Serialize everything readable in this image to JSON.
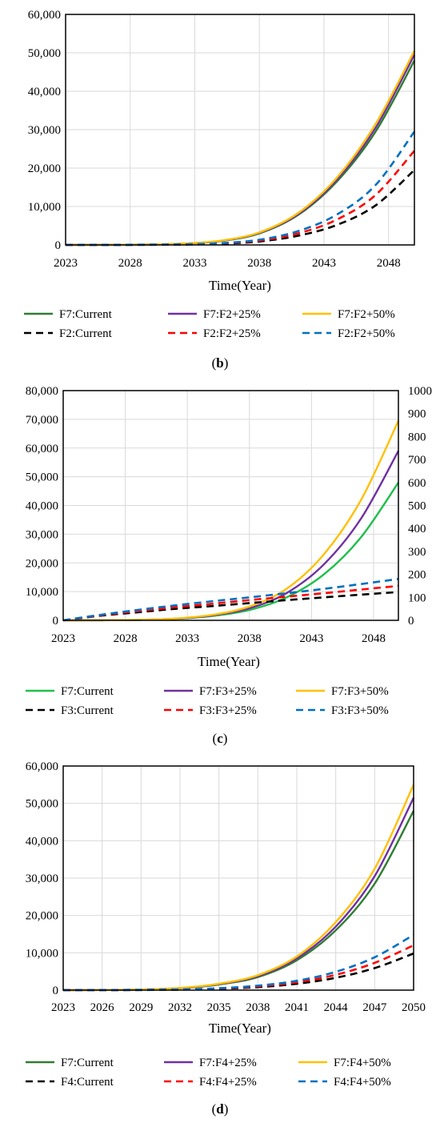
{
  "colors": {
    "green": "#2e7d32",
    "bright_green": "#1fbf4a",
    "purple": "#7030a0",
    "gold": "#ffc000",
    "black": "#000000",
    "red": "#ff0000",
    "blue": "#0070c0",
    "grid": "#d9d9d9"
  },
  "chart_data": [
    {
      "type": "line",
      "panel_label": "b",
      "xlabel": "Time(Year)",
      "ylabel": "",
      "xlim": [
        2023,
        2050
      ],
      "ylim": [
        0,
        60000
      ],
      "x_ticks": [
        2023,
        2028,
        2033,
        2038,
        2043,
        2048
      ],
      "x_tick_labels": [
        "2023",
        "2028",
        "2033",
        "2038",
        "2043",
        "2048"
      ],
      "y_tick_labels": [
        "0",
        "10,000",
        "20,000",
        "30,000",
        "40,000",
        "50,000",
        "60,000"
      ],
      "grid": true,
      "legend_position": "bottom",
      "x": [
        2023,
        2026,
        2029,
        2032,
        2035,
        2038,
        2041,
        2044,
        2047,
        2050
      ],
      "series": [
        {
          "name": "F7:Current",
          "color": "#2e7d32",
          "dash": "solid",
          "axis": "left",
          "values": [
            0,
            20,
            80,
            300,
            1000,
            3000,
            7800,
            16500,
            29500,
            48000
          ]
        },
        {
          "name": "F7:F2+25%",
          "color": "#7030a0",
          "dash": "solid",
          "axis": "left",
          "values": [
            0,
            20,
            85,
            320,
            1050,
            3150,
            8000,
            17000,
            30500,
            49500
          ]
        },
        {
          "name": "F7:F2+50%",
          "color": "#ffc000",
          "dash": "solid",
          "axis": "left",
          "values": [
            0,
            22,
            90,
            340,
            1100,
            3250,
            8300,
            17500,
            31500,
            50500
          ]
        },
        {
          "name": "F2:Current",
          "color": "#000000",
          "dash": "dashed",
          "axis": "left",
          "values": [
            0,
            10,
            30,
            100,
            300,
            900,
            2400,
            5200,
            10300,
            19500
          ]
        },
        {
          "name": "F2:F2+25%",
          "color": "#ff0000",
          "dash": "dashed",
          "axis": "left",
          "values": [
            0,
            12,
            38,
            125,
            380,
            1120,
            3000,
            6600,
            13000,
            24500
          ]
        },
        {
          "name": "F2:F2+50%",
          "color": "#0070c0",
          "dash": "dashed",
          "axis": "left",
          "values": [
            0,
            14,
            45,
            150,
            450,
            1350,
            3600,
            7900,
            15600,
            29500
          ]
        }
      ]
    },
    {
      "type": "line",
      "panel_label": "c",
      "xlabel": "Time(Year)",
      "ylabel": "",
      "xlim": [
        2023,
        2050
      ],
      "ylim": [
        0,
        80000
      ],
      "y2lim": [
        0,
        1000
      ],
      "x_ticks": [
        2023,
        2028,
        2033,
        2038,
        2043,
        2048
      ],
      "x_tick_labels": [
        "2023",
        "2028",
        "2033",
        "2038",
        "2043",
        "2048"
      ],
      "y_tick_labels": [
        "0",
        "10,000",
        "20,000",
        "30,000",
        "40,000",
        "50,000",
        "60,000",
        "70,000",
        "80,000"
      ],
      "y2_tick_labels": [
        "0",
        "100",
        "200",
        "300",
        "400",
        "500",
        "600",
        "700",
        "800",
        "900",
        "1000"
      ],
      "grid": true,
      "legend_position": "bottom",
      "x": [
        2023,
        2026,
        2029,
        2032,
        2035,
        2038,
        2041,
        2044,
        2047,
        2050
      ],
      "series": [
        {
          "name": "F7:Current",
          "color": "#1fbf4a",
          "dash": "solid",
          "axis": "left",
          "values": [
            0,
            30,
            150,
            500,
            1500,
            3600,
            8000,
            16000,
            29000,
            48000
          ]
        },
        {
          "name": "F7:F3+25%",
          "color": "#7030a0",
          "dash": "solid",
          "axis": "left",
          "values": [
            0,
            30,
            160,
            560,
            1700,
            4200,
            9500,
            19500,
            35500,
            59000
          ]
        },
        {
          "name": "F7:F3+50%",
          "color": "#ffc000",
          "dash": "solid",
          "axis": "left",
          "values": [
            0,
            30,
            170,
            620,
            1900,
            4800,
            11000,
            23000,
            42000,
            69500
          ]
        },
        {
          "name": "F3:Current",
          "color": "#000000",
          "dash": "dashed",
          "axis": "right",
          "values": [
            0,
            20,
            35,
            50,
            62,
            75,
            88,
            100,
            112,
            123
          ]
        },
        {
          "name": "F3:F3+25%",
          "color": "#ff0000",
          "dash": "dashed",
          "axis": "right",
          "values": [
            0,
            22,
            40,
            57,
            72,
            88,
            103,
            118,
            134,
            150
          ]
        },
        {
          "name": "F3:F3+50%",
          "color": "#0070c0",
          "dash": "dashed",
          "axis": "right",
          "values": [
            0,
            24,
            45,
            65,
            83,
            100,
            118,
            137,
            158,
            180
          ]
        }
      ]
    },
    {
      "type": "line",
      "panel_label": "d",
      "xlabel": "Time(Year)",
      "ylabel": "",
      "xlim": [
        2023,
        2050
      ],
      "ylim": [
        0,
        60000
      ],
      "x_ticks": [
        2023,
        2026,
        2029,
        2032,
        2035,
        2038,
        2041,
        2044,
        2047,
        2050
      ],
      "x_tick_labels": [
        "2023",
        "2026",
        "2029",
        "2032",
        "2035",
        "2038",
        "2041",
        "2044",
        "2047",
        "2050"
      ],
      "y_tick_labels": [
        "0",
        "10,000",
        "20,000",
        "30,000",
        "40,000",
        "50,000",
        "60,000"
      ],
      "grid": true,
      "legend_position": "bottom",
      "x": [
        2023,
        2026,
        2029,
        2032,
        2035,
        2038,
        2041,
        2044,
        2047,
        2050
      ],
      "series": [
        {
          "name": "F7:Current",
          "color": "#2e7d32",
          "dash": "solid",
          "axis": "left",
          "values": [
            0,
            30,
            150,
            500,
            1500,
            3500,
            8000,
            16000,
            28500,
            48000
          ]
        },
        {
          "name": "F7:F4+25%",
          "color": "#7030a0",
          "dash": "solid",
          "axis": "left",
          "values": [
            0,
            30,
            160,
            540,
            1600,
            3750,
            8500,
            17000,
            30500,
            51500
          ]
        },
        {
          "name": "F7:F4+50%",
          "color": "#ffc000",
          "dash": "solid",
          "axis": "left",
          "values": [
            0,
            32,
            170,
            580,
            1700,
            4000,
            9000,
            18200,
            32500,
            55000
          ]
        },
        {
          "name": "F4:Current",
          "color": "#000000",
          "dash": "dashed",
          "axis": "left",
          "values": [
            0,
            10,
            40,
            120,
            350,
            800,
            1700,
            3300,
            5900,
            9800
          ]
        },
        {
          "name": "F4:F4+25%",
          "color": "#ff0000",
          "dash": "dashed",
          "axis": "left",
          "values": [
            0,
            12,
            50,
            150,
            430,
            1000,
            2100,
            4100,
            7300,
            12000
          ]
        },
        {
          "name": "F4:F4+50%",
          "color": "#0070c0",
          "dash": "dashed",
          "axis": "left",
          "values": [
            0,
            14,
            60,
            180,
            510,
            1200,
            2500,
            4900,
            8800,
            14800
          ]
        }
      ]
    }
  ]
}
